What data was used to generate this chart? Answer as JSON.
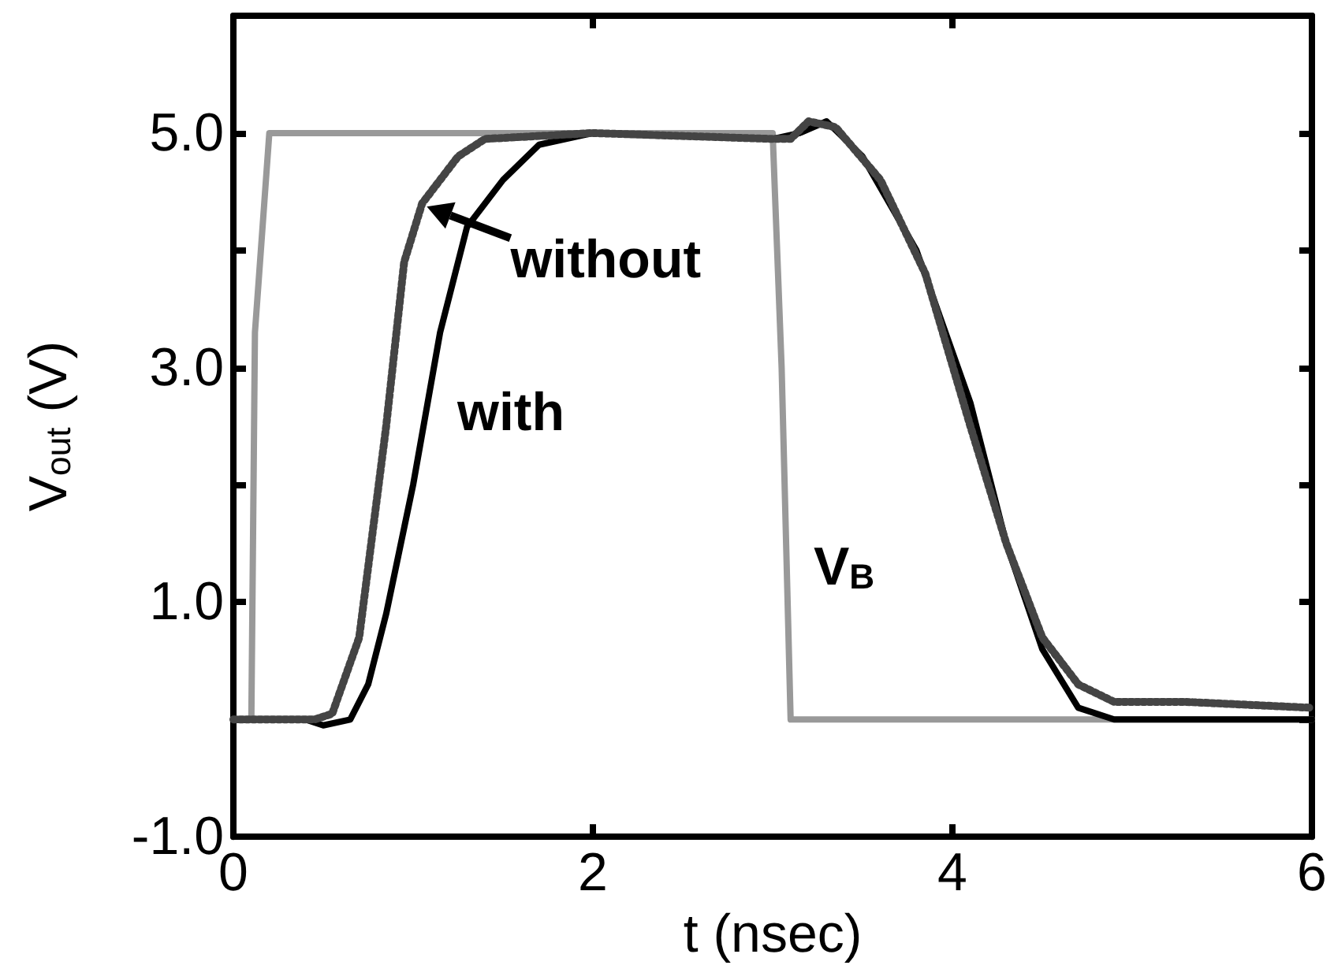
{
  "chart_data": {
    "type": "line",
    "xlabel": "t (nsec)",
    "ylabel": "V$_{out}$ (V)",
    "xlim": [
      0,
      6
    ],
    "xticks": [
      0,
      2,
      4,
      6
    ],
    "ylim": [
      -1,
      6
    ],
    "yticks": [
      {
        "value": -1,
        "label": "-1.0"
      },
      {
        "value": 0,
        "label": null
      },
      {
        "value": 1,
        "label": "1.0"
      },
      {
        "value": 2,
        "label": null
      },
      {
        "value": 3,
        "label": "3.0"
      },
      {
        "value": 4,
        "label": null
      },
      {
        "value": 5,
        "label": "5.0"
      },
      {
        "value": 6,
        "label": null
      }
    ],
    "grid": false,
    "marker": "none",
    "series": [
      {
        "color": "#999999",
        "line_style": "solid",
        "x": [
          0,
          0.1,
          0.12,
          0.2,
          3.0,
          3.05,
          3.1,
          6
        ],
        "values": [
          0,
          0,
          3.3,
          5,
          5,
          3,
          0,
          0
        ]
      },
      {
        "color": "#000000",
        "line_style": "solid",
        "x": [
          0,
          0.4,
          0.5,
          0.65,
          0.75,
          0.85,
          1.0,
          1.15,
          1.3,
          1.5,
          1.7,
          2.0,
          3.0,
          3.15,
          3.3,
          3.5,
          3.8,
          4.1,
          4.3,
          4.5,
          4.7,
          4.9,
          6
        ],
        "values": [
          0,
          0,
          -0.05,
          0,
          0.3,
          0.9,
          2.0,
          3.3,
          4.2,
          4.6,
          4.9,
          5.0,
          4.95,
          5.0,
          5.1,
          4.8,
          4.0,
          2.7,
          1.5,
          0.6,
          0.1,
          0,
          0
        ]
      },
      {
        "color": "#444444",
        "line_style": "dotted",
        "x": [
          0,
          0.45,
          0.55,
          0.7,
          0.85,
          0.95,
          1.05,
          1.25,
          1.4,
          2.0,
          3.0,
          3.1,
          3.2,
          3.35,
          3.6,
          3.85,
          4.1,
          4.3,
          4.5,
          4.7,
          4.9,
          5.3,
          6
        ],
        "values": [
          0,
          0,
          0.05,
          0.7,
          2.5,
          3.9,
          4.4,
          4.8,
          4.95,
          5.0,
          4.95,
          4.95,
          5.1,
          5.05,
          4.6,
          3.8,
          2.5,
          1.5,
          0.7,
          0.3,
          0.15,
          0.15,
          0.1
        ]
      }
    ],
    "annotations": [
      {
        "text": "without",
        "x": 1.05,
        "y": 4.4
      },
      "with",
      "V$_{B}$"
    ]
  }
}
